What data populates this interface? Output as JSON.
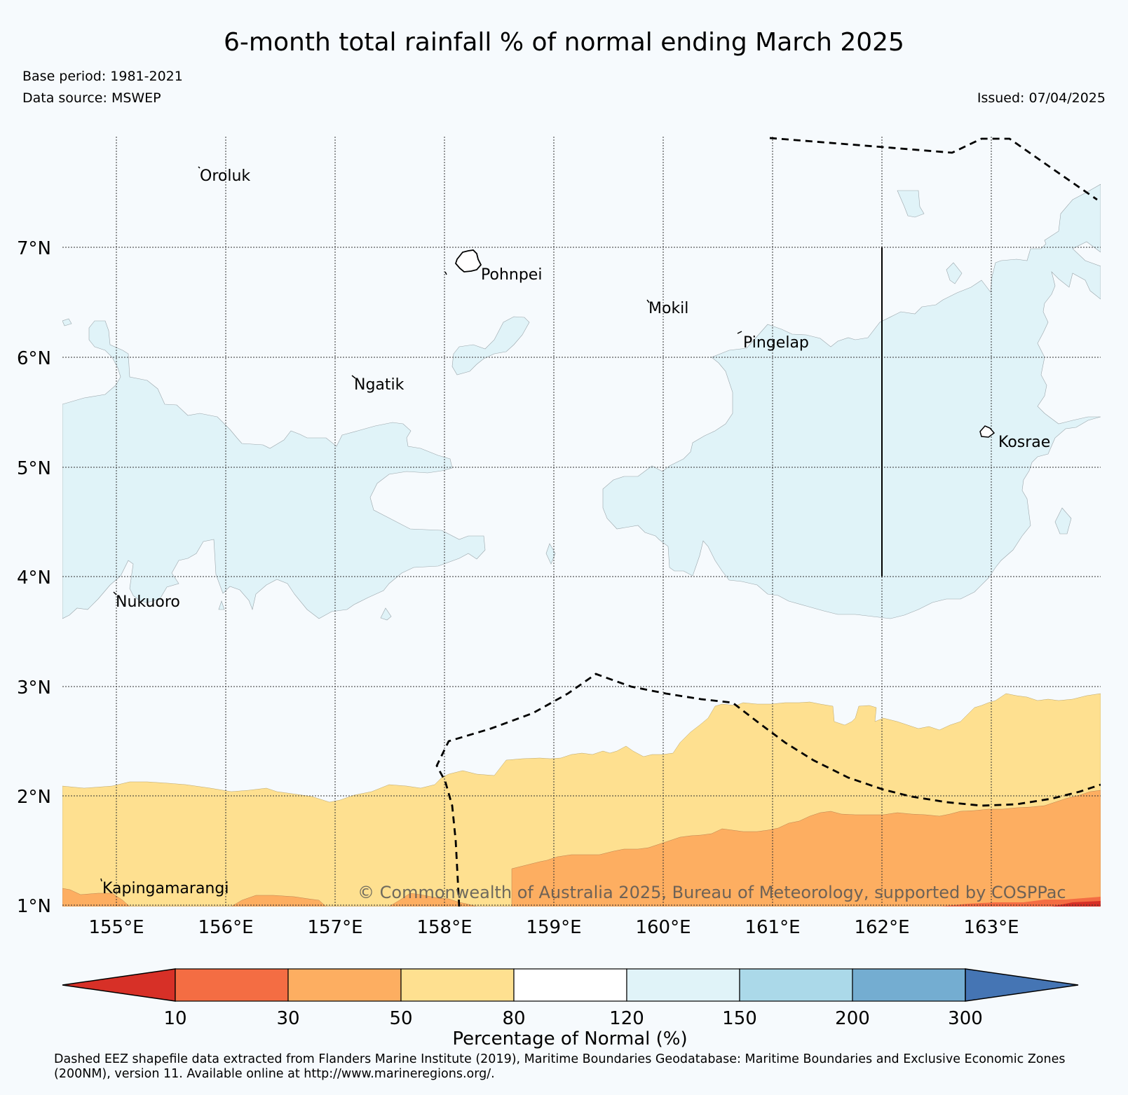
{
  "header": {
    "title": "6-month total rainfall % of normal ending March 2025",
    "base_period": "Base period: 1981-2021",
    "data_source": "Data source: MSWEP",
    "issued": "Issued: 07/04/2025"
  },
  "map": {
    "lat_labels": [
      "7°N",
      "6°N",
      "5°N",
      "4°N",
      "3°N",
      "2°N",
      "1°N"
    ],
    "lon_labels": [
      "155°E",
      "156°E",
      "157°E",
      "158°E",
      "159°E",
      "160°E",
      "161°E",
      "162°E",
      "163°E"
    ],
    "places": [
      "Oroluk",
      "Pohnpei",
      "Mokil",
      "Pingelap",
      "Ngatik",
      "Kosrae",
      "Nukuoro",
      "Kapingamarangi"
    ],
    "copyright": "© Commonwealth of Australia 2025, Bureau of Meteorology, supported by COSPPac",
    "region_colors": {
      "background": "#f6fafd",
      "wet_120_150": "#e0f3f8",
      "dry_50_80": "#fee090",
      "dry_30_50": "#fdae61",
      "dry_10_30": "#f46d43"
    }
  },
  "colorbar": {
    "ticks": [
      "10",
      "30",
      "50",
      "80",
      "120",
      "150",
      "200",
      "300"
    ],
    "colors": [
      "#d73027",
      "#f46d43",
      "#fdae61",
      "#fee090",
      "#ffffff",
      "#e0f3f8",
      "#abd9e9",
      "#74add1",
      "#4575b4"
    ],
    "title": "Percentage of Normal (%)"
  },
  "footnote": "Dashed EEZ shapefile data extracted from Flanders Marine Institute (2019), Maritime Boundaries Geodatabase: Maritime Boundaries and Exclusive Economic Zones (200NM), version 11. Available online at http://www.marineregions.org/."
}
